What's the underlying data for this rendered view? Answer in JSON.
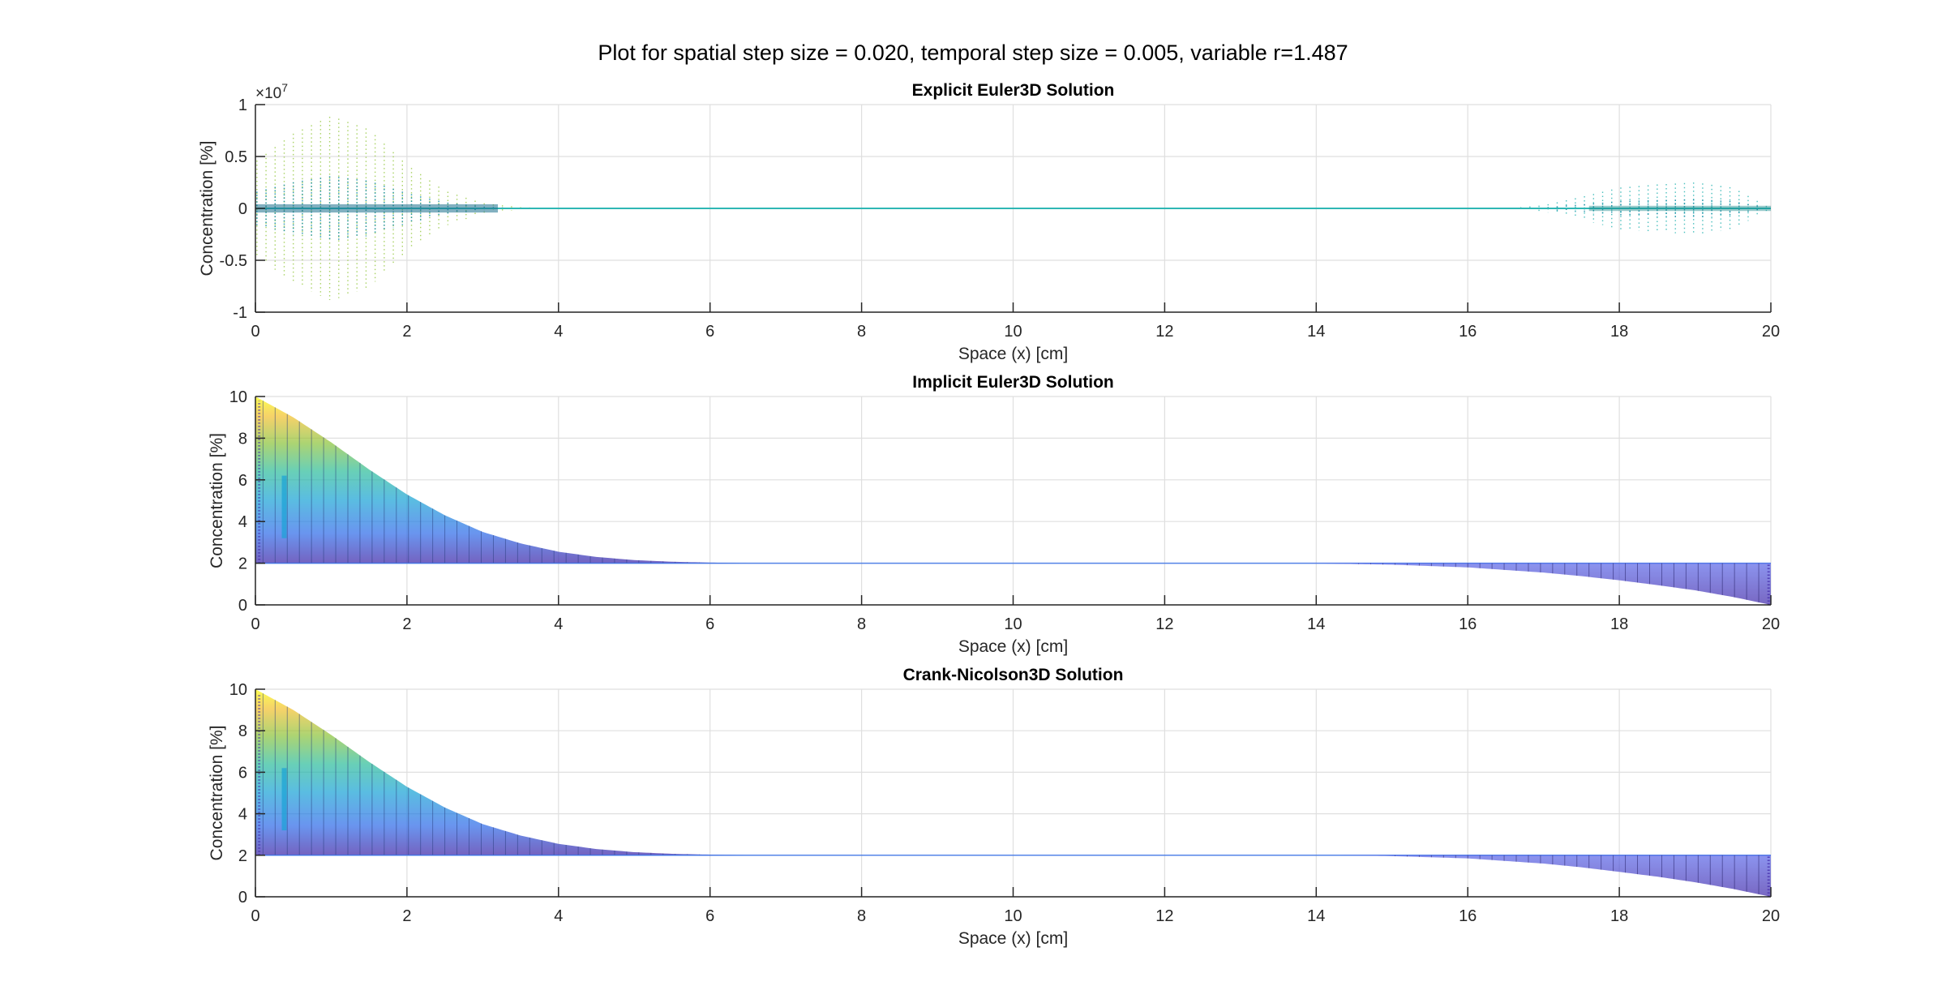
{
  "figure_title": "Plot for spatial step size = 0.020, temporal step size = 0.005, variable r=1.487",
  "colors": {
    "axis": "#262626",
    "grid": "#dfdfdf",
    "background": "#ffffff",
    "colormap": [
      "#3e26a8",
      "#2f6ce9",
      "#1aa3d6",
      "#2ebd9b",
      "#8cc33c",
      "#f2c02e",
      "#f9fb0e"
    ],
    "explicit_main": "#2fb7b4",
    "explicit_outer": "#9ccc4c"
  },
  "chart_data": [
    {
      "type": "scatter",
      "title": "Explicit Euler3D Solution",
      "xlabel": "Space (x) [cm]",
      "ylabel": "Concentration [%]",
      "y_exponent_label": "×10",
      "y_exponent_power": "7",
      "xlim": [
        0,
        20
      ],
      "ylim": [
        -10000000,
        10000000
      ],
      "xticks": [
        0,
        2,
        4,
        6,
        8,
        10,
        12,
        14,
        16,
        18,
        20
      ],
      "xticklabels": [
        "0",
        "2",
        "4",
        "6",
        "8",
        "10",
        "12",
        "14",
        "16",
        "18",
        "20"
      ],
      "yticks": [
        -10000000,
        -5000000,
        0,
        5000000,
        10000000
      ],
      "yticklabels": [
        "-1",
        "-0.5",
        "0",
        "0.5",
        "1"
      ],
      "grid": true,
      "envelope": {
        "description_points": [
          {
            "x": 0,
            "amp": 4500000
          },
          {
            "x": 0.5,
            "amp": 7200000
          },
          {
            "x": 1.0,
            "amp": 8900000
          },
          {
            "x": 1.5,
            "amp": 7600000
          },
          {
            "x": 2.0,
            "amp": 4200000
          },
          {
            "x": 2.5,
            "amp": 1700000
          },
          {
            "x": 3.0,
            "amp": 500000
          },
          {
            "x": 3.5,
            "amp": 120000
          },
          {
            "x": 4.0,
            "amp": 0
          },
          {
            "x": 16.5,
            "amp": 0
          },
          {
            "x": 17.0,
            "amp": 300000
          },
          {
            "x": 17.5,
            "amp": 1100000
          },
          {
            "x": 18.0,
            "amp": 2000000
          },
          {
            "x": 18.5,
            "amp": 2300000
          },
          {
            "x": 19.0,
            "amp": 2500000
          },
          {
            "x": 19.5,
            "amp": 2000000
          },
          {
            "x": 20.0,
            "amp": 0
          }
        ]
      }
    },
    {
      "type": "scatter",
      "title": "Implicit Euler3D Solution",
      "xlabel": "Space (x) [cm]",
      "ylabel": "Concentration [%]",
      "xlim": [
        0,
        20
      ],
      "ylim": [
        0,
        10
      ],
      "xticks": [
        0,
        2,
        4,
        6,
        8,
        10,
        12,
        14,
        16,
        18,
        20
      ],
      "xticklabels": [
        "0",
        "2",
        "4",
        "6",
        "8",
        "10",
        "12",
        "14",
        "16",
        "18",
        "20"
      ],
      "yticks": [
        0,
        2,
        4,
        6,
        8,
        10
      ],
      "yticklabels": [
        "0",
        "2",
        "4",
        "6",
        "8",
        "10"
      ],
      "grid": true,
      "baseline": 2,
      "upper_curve": {
        "x": [
          0,
          0.5,
          1.0,
          1.5,
          2.0,
          2.5,
          3.0,
          3.5,
          4.0,
          4.5,
          5.0,
          5.5,
          6.0,
          6.5
        ],
        "y": [
          10,
          9.0,
          7.8,
          6.5,
          5.3,
          4.3,
          3.5,
          2.95,
          2.55,
          2.3,
          2.15,
          2.07,
          2.03,
          2.0
        ]
      },
      "lower_curve": {
        "x": [
          13.5,
          14,
          15,
          16,
          17,
          17.5,
          18,
          18.5,
          19,
          19.5,
          20
        ],
        "y": [
          2.0,
          1.99,
          1.93,
          1.8,
          1.55,
          1.38,
          1.18,
          0.95,
          0.7,
          0.38,
          0
        ]
      }
    },
    {
      "type": "scatter",
      "title": "Crank-Nicolson3D Solution",
      "xlabel": "Space (x) [cm]",
      "ylabel": "Concentration [%]",
      "xlim": [
        0,
        20
      ],
      "ylim": [
        0,
        10
      ],
      "xticks": [
        0,
        2,
        4,
        6,
        8,
        10,
        12,
        14,
        16,
        18,
        20
      ],
      "xticklabels": [
        "0",
        "2",
        "4",
        "6",
        "8",
        "10",
        "12",
        "14",
        "16",
        "18",
        "20"
      ],
      "yticks": [
        0,
        2,
        4,
        6,
        8,
        10
      ],
      "yticklabels": [
        "0",
        "2",
        "4",
        "6",
        "8",
        "10"
      ],
      "grid": true,
      "baseline": 2,
      "upper_curve": {
        "x": [
          0,
          0.5,
          1.0,
          1.5,
          2.0,
          2.5,
          3.0,
          3.5,
          4.0,
          4.5,
          5.0,
          5.5,
          6.0,
          6.5
        ],
        "y": [
          10,
          9.0,
          7.8,
          6.5,
          5.3,
          4.3,
          3.5,
          2.95,
          2.55,
          2.3,
          2.15,
          2.07,
          2.03,
          2.0
        ]
      },
      "lower_curve": {
        "x": [
          14.3,
          15,
          16,
          17,
          17.5,
          18,
          18.5,
          19,
          19.5,
          20
        ],
        "y": [
          2.0,
          1.96,
          1.85,
          1.6,
          1.42,
          1.2,
          0.97,
          0.7,
          0.38,
          0
        ]
      }
    }
  ]
}
